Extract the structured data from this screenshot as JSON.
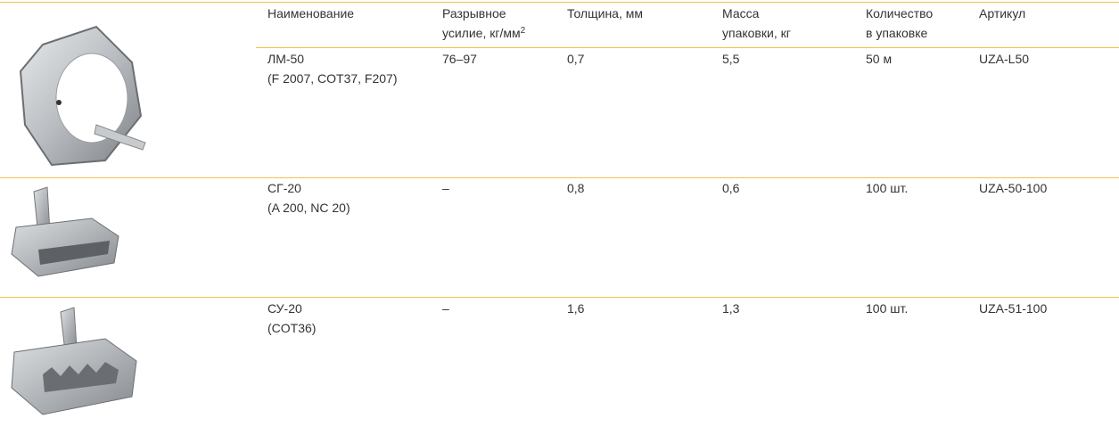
{
  "header": {
    "cells": [
      {
        "lines": [
          "Наименование"
        ]
      },
      {
        "lines": [
          "Разрывное",
          "усилие, кг/мм"
        ],
        "sup": "2"
      },
      {
        "lines": [
          "Толщина, мм"
        ]
      },
      {
        "lines": [
          "Масса",
          "упаковки, кг"
        ]
      },
      {
        "lines": [
          "Количество",
          "в упаковке"
        ]
      },
      {
        "lines": [
          "Артикул"
        ]
      }
    ]
  },
  "rows": [
    {
      "name": [
        "ЛМ-50",
        "(F 2007, COT37, F207)"
      ],
      "force": "76–97",
      "thickness": "0,7",
      "mass": "5,5",
      "quantity": "50 м",
      "article": "UZA-L50"
    },
    {
      "name": [
        "СГ-20",
        "(A 200, NC 20)"
      ],
      "force": "–",
      "thickness": "0,8",
      "mass": "0,6",
      "quantity": "100 шт.",
      "article": "UZA-50-100"
    },
    {
      "name": [
        "СУ-20",
        "(COT36)"
      ],
      "force": "–",
      "thickness": "1,6",
      "mass": "1,3",
      "quantity": "100 шт.",
      "article": "UZA-51-100"
    }
  ]
}
